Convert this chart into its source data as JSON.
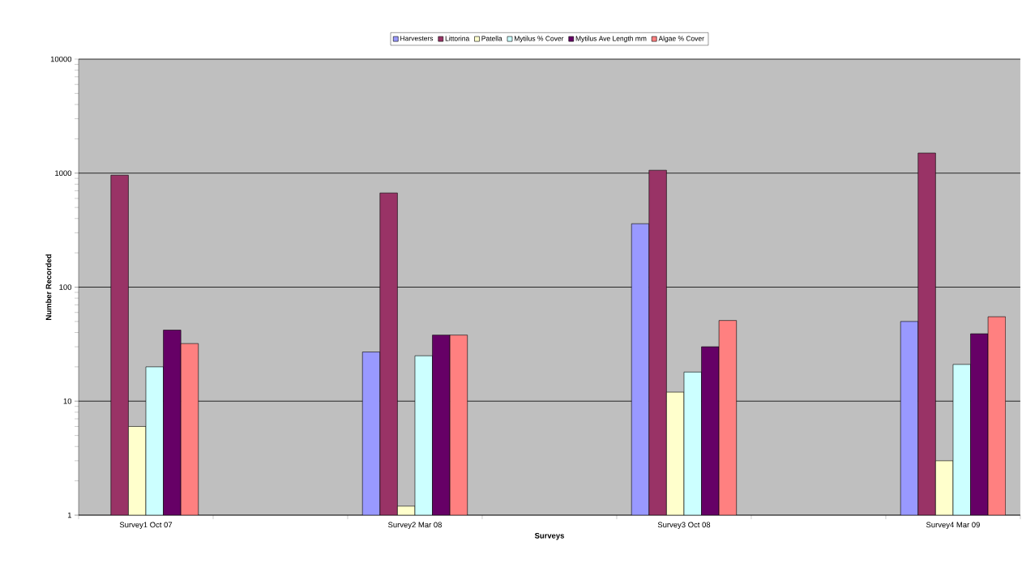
{
  "chart_data": {
    "type": "bar",
    "xlabel": "Surveys",
    "ylabel": "Number Recorded",
    "categories": [
      "Survey1 Oct 07",
      null,
      "Survey2 Mar 08",
      null,
      "Survey3 Oct 08",
      null,
      "Survey4 Mar 09"
    ],
    "series": [
      {
        "name": "Harvesters",
        "color": "#9999ff",
        "values": [
          null,
          null,
          27,
          null,
          360,
          null,
          50
        ]
      },
      {
        "name": "Littorina",
        "color": "#993366",
        "values": [
          960,
          null,
          670,
          null,
          1060,
          null,
          1500
        ]
      },
      {
        "name": "Patella",
        "color": "#ffffcc",
        "values": [
          6,
          null,
          1.2,
          null,
          12,
          null,
          3
        ]
      },
      {
        "name": "Mytilus % Cover",
        "color": "#ccffff",
        "values": [
          20,
          null,
          25,
          null,
          18,
          null,
          21
        ]
      },
      {
        "name": "Mytilus Ave Length mm",
        "color": "#660066",
        "values": [
          42,
          null,
          38,
          null,
          30,
          null,
          39
        ]
      },
      {
        "name": "Algae % Cover",
        "color": "#ff8080",
        "values": [
          32,
          null,
          38,
          null,
          51,
          null,
          55
        ]
      }
    ],
    "log": "y",
    "ylim": [
      1,
      10000
    ],
    "yticks": [
      1,
      10,
      100,
      1000,
      10000
    ],
    "grid": "y",
    "legend": "top"
  }
}
